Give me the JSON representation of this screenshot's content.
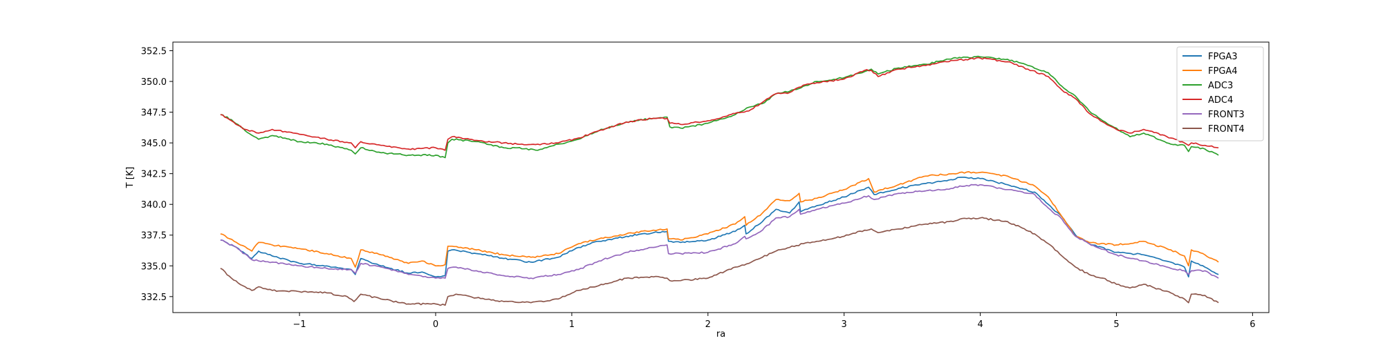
{
  "chart_data": {
    "type": "line",
    "title": "",
    "xlabel": "ra",
    "ylabel": "T [K]",
    "xlim": [
      -1.93,
      6.12
    ],
    "ylim": [
      331.2,
      353.2
    ],
    "xticks": [
      -1,
      0,
      1,
      2,
      3,
      4,
      5,
      6
    ],
    "xtick_labels": [
      "−1",
      "0",
      "1",
      "2",
      "3",
      "4",
      "5",
      "6"
    ],
    "yticks": [
      332.5,
      335.0,
      337.5,
      340.0,
      342.5,
      345.0,
      347.5,
      350.0,
      352.5
    ],
    "ytick_labels": [
      "332.5",
      "335.0",
      "337.5",
      "340.0",
      "342.5",
      "345.0",
      "347.5",
      "350.0",
      "352.5"
    ],
    "grid": false,
    "legend_position": "top-right",
    "series": [
      {
        "name": "FPGA3",
        "color": "#1f77b4",
        "x": [
          -1.58,
          -1.48,
          -1.35,
          -1.3,
          -1.2,
          -1.0,
          -0.8,
          -0.62,
          -0.59,
          -0.55,
          -0.4,
          -0.2,
          -0.1,
          0.0,
          0.07,
          0.09,
          0.12,
          0.3,
          0.5,
          0.7,
          0.9,
          1.05,
          1.2,
          1.4,
          1.6,
          1.7,
          1.71,
          1.8,
          2.0,
          2.2,
          2.27,
          2.28,
          2.4,
          2.5,
          2.6,
          2.67,
          2.68,
          2.8,
          3.0,
          3.18,
          3.22,
          3.4,
          3.6,
          3.8,
          3.85,
          4.0,
          4.2,
          4.4,
          4.5,
          4.6,
          4.7,
          4.8,
          5.0,
          5.2,
          5.4,
          5.5,
          5.53,
          5.55,
          5.65,
          5.75
        ],
        "y": [
          337.1,
          336.6,
          335.6,
          336.2,
          335.8,
          335.2,
          335.0,
          334.7,
          334.3,
          335.6,
          335.0,
          334.4,
          334.5,
          334.1,
          334.2,
          336.2,
          336.3,
          336.0,
          335.6,
          335.3,
          335.7,
          336.5,
          337.0,
          337.4,
          337.7,
          337.8,
          337.0,
          336.9,
          337.1,
          337.8,
          338.3,
          337.6,
          338.6,
          339.6,
          339.3,
          340.2,
          339.4,
          339.9,
          340.6,
          341.4,
          340.8,
          341.3,
          341.7,
          342.0,
          342.2,
          342.1,
          341.6,
          341.0,
          340.0,
          339.0,
          337.5,
          336.8,
          336.1,
          335.9,
          335.3,
          334.9,
          334.1,
          335.4,
          334.9,
          334.3
        ]
      },
      {
        "name": "FPGA4",
        "color": "#ff7f0e",
        "x": [
          -1.58,
          -1.48,
          -1.35,
          -1.3,
          -1.2,
          -1.0,
          -0.8,
          -0.62,
          -0.59,
          -0.55,
          -0.4,
          -0.2,
          -0.1,
          0.0,
          0.07,
          0.09,
          0.12,
          0.3,
          0.5,
          0.7,
          0.9,
          1.05,
          1.2,
          1.4,
          1.6,
          1.7,
          1.71,
          1.8,
          2.0,
          2.2,
          2.27,
          2.28,
          2.4,
          2.5,
          2.6,
          2.67,
          2.68,
          2.8,
          3.0,
          3.18,
          3.22,
          3.4,
          3.6,
          3.8,
          3.85,
          4.0,
          4.2,
          4.4,
          4.5,
          4.6,
          4.7,
          4.8,
          5.0,
          5.2,
          5.4,
          5.5,
          5.53,
          5.55,
          5.65,
          5.75
        ],
        "y": [
          337.6,
          337.0,
          336.2,
          336.9,
          336.7,
          336.4,
          336.0,
          335.6,
          334.9,
          336.3,
          335.9,
          335.2,
          335.4,
          335.0,
          335.1,
          336.6,
          336.6,
          336.3,
          335.9,
          335.7,
          336.0,
          336.8,
          337.2,
          337.6,
          337.9,
          338.0,
          337.2,
          337.1,
          337.6,
          338.4,
          339.0,
          338.3,
          339.3,
          340.4,
          340.3,
          340.9,
          340.2,
          340.5,
          341.2,
          342.1,
          341.0,
          341.6,
          342.3,
          342.5,
          342.6,
          342.6,
          342.3,
          341.5,
          340.6,
          339.0,
          337.4,
          336.9,
          336.7,
          337.0,
          336.3,
          335.8,
          335.0,
          336.3,
          335.9,
          335.3
        ]
      },
      {
        "name": "ADC3",
        "color": "#2ca02c",
        "x": [
          -1.58,
          -1.5,
          -1.4,
          -1.3,
          -1.2,
          -1.0,
          -0.8,
          -0.62,
          -0.59,
          -0.55,
          -0.4,
          -0.2,
          0.0,
          0.07,
          0.09,
          0.12,
          0.3,
          0.5,
          0.6,
          0.75,
          0.9,
          1.05,
          1.2,
          1.4,
          1.6,
          1.7,
          1.72,
          1.8,
          2.0,
          2.2,
          2.3,
          2.4,
          2.5,
          2.6,
          2.7,
          2.8,
          3.0,
          3.15,
          3.2,
          3.25,
          3.4,
          3.6,
          3.8,
          4.0,
          4.2,
          4.35,
          4.5,
          4.6,
          4.7,
          4.8,
          4.9,
          5.0,
          5.1,
          5.2,
          5.4,
          5.5,
          5.53,
          5.55,
          5.65,
          5.75
        ],
        "y": [
          347.3,
          346.9,
          346.0,
          345.3,
          345.6,
          345.1,
          344.9,
          344.4,
          344.1,
          344.6,
          344.2,
          344.0,
          344.0,
          343.8,
          345.0,
          345.3,
          345.1,
          344.6,
          344.6,
          344.4,
          344.9,
          345.3,
          346.0,
          346.7,
          347.0,
          347.1,
          346.3,
          346.2,
          346.6,
          347.3,
          347.9,
          348.2,
          349.0,
          349.2,
          349.6,
          350.0,
          350.3,
          350.8,
          351.0,
          350.6,
          351.1,
          351.4,
          351.9,
          352.0,
          351.8,
          351.3,
          350.7,
          349.6,
          348.8,
          347.6,
          346.8,
          346.2,
          345.5,
          345.8,
          344.9,
          344.8,
          344.3,
          344.7,
          344.5,
          344.0
        ]
      },
      {
        "name": "ADC4",
        "color": "#d62728",
        "x": [
          -1.58,
          -1.5,
          -1.4,
          -1.3,
          -1.2,
          -1.0,
          -0.8,
          -0.62,
          -0.59,
          -0.55,
          -0.4,
          -0.2,
          0.0,
          0.07,
          0.09,
          0.12,
          0.3,
          0.5,
          0.6,
          0.75,
          0.9,
          1.05,
          1.2,
          1.4,
          1.6,
          1.7,
          1.72,
          1.8,
          2.0,
          2.2,
          2.3,
          2.4,
          2.5,
          2.6,
          2.7,
          2.8,
          3.0,
          3.15,
          3.2,
          3.25,
          3.4,
          3.6,
          3.8,
          4.0,
          4.2,
          4.35,
          4.5,
          4.6,
          4.7,
          4.8,
          4.9,
          5.0,
          5.1,
          5.2,
          5.4,
          5.5,
          5.53,
          5.55,
          5.65,
          5.75
        ],
        "y": [
          347.3,
          346.8,
          346.1,
          345.8,
          346.1,
          345.7,
          345.3,
          345.0,
          344.6,
          345.1,
          344.8,
          344.5,
          344.6,
          344.4,
          345.3,
          345.5,
          345.2,
          345.0,
          344.9,
          344.9,
          345.0,
          345.4,
          346.0,
          346.7,
          347.0,
          347.0,
          346.6,
          346.5,
          346.8,
          347.4,
          347.6,
          348.3,
          349.0,
          349.1,
          349.7,
          349.9,
          350.2,
          350.9,
          350.9,
          350.4,
          351.0,
          351.3,
          351.7,
          351.9,
          351.6,
          351.0,
          350.4,
          349.3,
          348.6,
          347.4,
          346.7,
          346.1,
          345.8,
          346.1,
          345.4,
          345.0,
          344.8,
          345.0,
          344.8,
          344.6
        ]
      },
      {
        "name": "FRONT3",
        "color": "#9467bd",
        "x": [
          -1.58,
          -1.48,
          -1.35,
          -1.3,
          -1.2,
          -1.0,
          -0.8,
          -0.62,
          -0.59,
          -0.55,
          -0.4,
          -0.2,
          0.0,
          0.07,
          0.09,
          0.15,
          0.3,
          0.5,
          0.7,
          0.9,
          1.05,
          1.2,
          1.4,
          1.6,
          1.7,
          1.71,
          1.8,
          2.0,
          2.2,
          2.27,
          2.28,
          2.4,
          2.5,
          2.6,
          2.67,
          2.68,
          2.8,
          3.0,
          3.18,
          3.22,
          3.4,
          3.6,
          3.8,
          3.85,
          4.0,
          4.2,
          4.4,
          4.5,
          4.6,
          4.7,
          4.8,
          5.0,
          5.2,
          5.4,
          5.5,
          5.53,
          5.55,
          5.65,
          5.75
        ],
        "y": [
          337.1,
          336.6,
          335.5,
          335.4,
          335.3,
          335.0,
          334.8,
          334.7,
          334.4,
          335.2,
          334.9,
          334.3,
          334.0,
          334.0,
          334.8,
          334.9,
          334.6,
          334.2,
          334.0,
          334.3,
          334.7,
          335.4,
          336.1,
          336.5,
          336.7,
          336.0,
          336.0,
          336.1,
          336.8,
          337.4,
          337.2,
          337.9,
          338.9,
          339.0,
          339.6,
          339.2,
          339.6,
          340.1,
          340.7,
          340.4,
          340.9,
          341.1,
          341.3,
          341.5,
          341.6,
          341.2,
          340.8,
          339.7,
          338.8,
          337.4,
          336.8,
          335.9,
          335.4,
          334.8,
          334.6,
          334.3,
          334.6,
          334.6,
          334.0
        ]
      },
      {
        "name": "FRONT4",
        "color": "#8c564b",
        "x": [
          -1.58,
          -1.5,
          -1.4,
          -1.35,
          -1.3,
          -1.2,
          -1.0,
          -0.8,
          -0.65,
          -0.6,
          -0.55,
          -0.4,
          -0.2,
          0.0,
          0.07,
          0.09,
          0.15,
          0.3,
          0.5,
          0.7,
          0.9,
          1.05,
          1.2,
          1.4,
          1.6,
          1.7,
          1.72,
          1.8,
          2.0,
          2.2,
          2.3,
          2.4,
          2.5,
          2.6,
          2.7,
          2.8,
          3.0,
          3.15,
          3.2,
          3.25,
          3.4,
          3.6,
          3.8,
          3.85,
          4.0,
          4.2,
          4.4,
          4.5,
          4.6,
          4.7,
          4.8,
          4.9,
          5.0,
          5.1,
          5.2,
          5.4,
          5.5,
          5.53,
          5.55,
          5.65,
          5.75
        ],
        "y": [
          334.8,
          334.0,
          333.3,
          333.0,
          333.3,
          333.0,
          332.9,
          332.8,
          332.5,
          332.1,
          332.7,
          332.3,
          331.9,
          331.9,
          331.8,
          332.5,
          332.7,
          332.4,
          332.1,
          332.0,
          332.3,
          333.0,
          333.4,
          334.0,
          334.1,
          334.0,
          333.8,
          333.8,
          334.0,
          334.9,
          335.2,
          335.7,
          336.2,
          336.5,
          336.8,
          337.0,
          337.4,
          337.9,
          338.0,
          337.7,
          338.0,
          338.4,
          338.6,
          338.8,
          338.9,
          338.6,
          337.6,
          336.8,
          335.8,
          334.9,
          334.3,
          334.0,
          333.5,
          333.2,
          333.5,
          332.8,
          332.3,
          332.0,
          332.7,
          332.6,
          332.0
        ]
      }
    ]
  }
}
